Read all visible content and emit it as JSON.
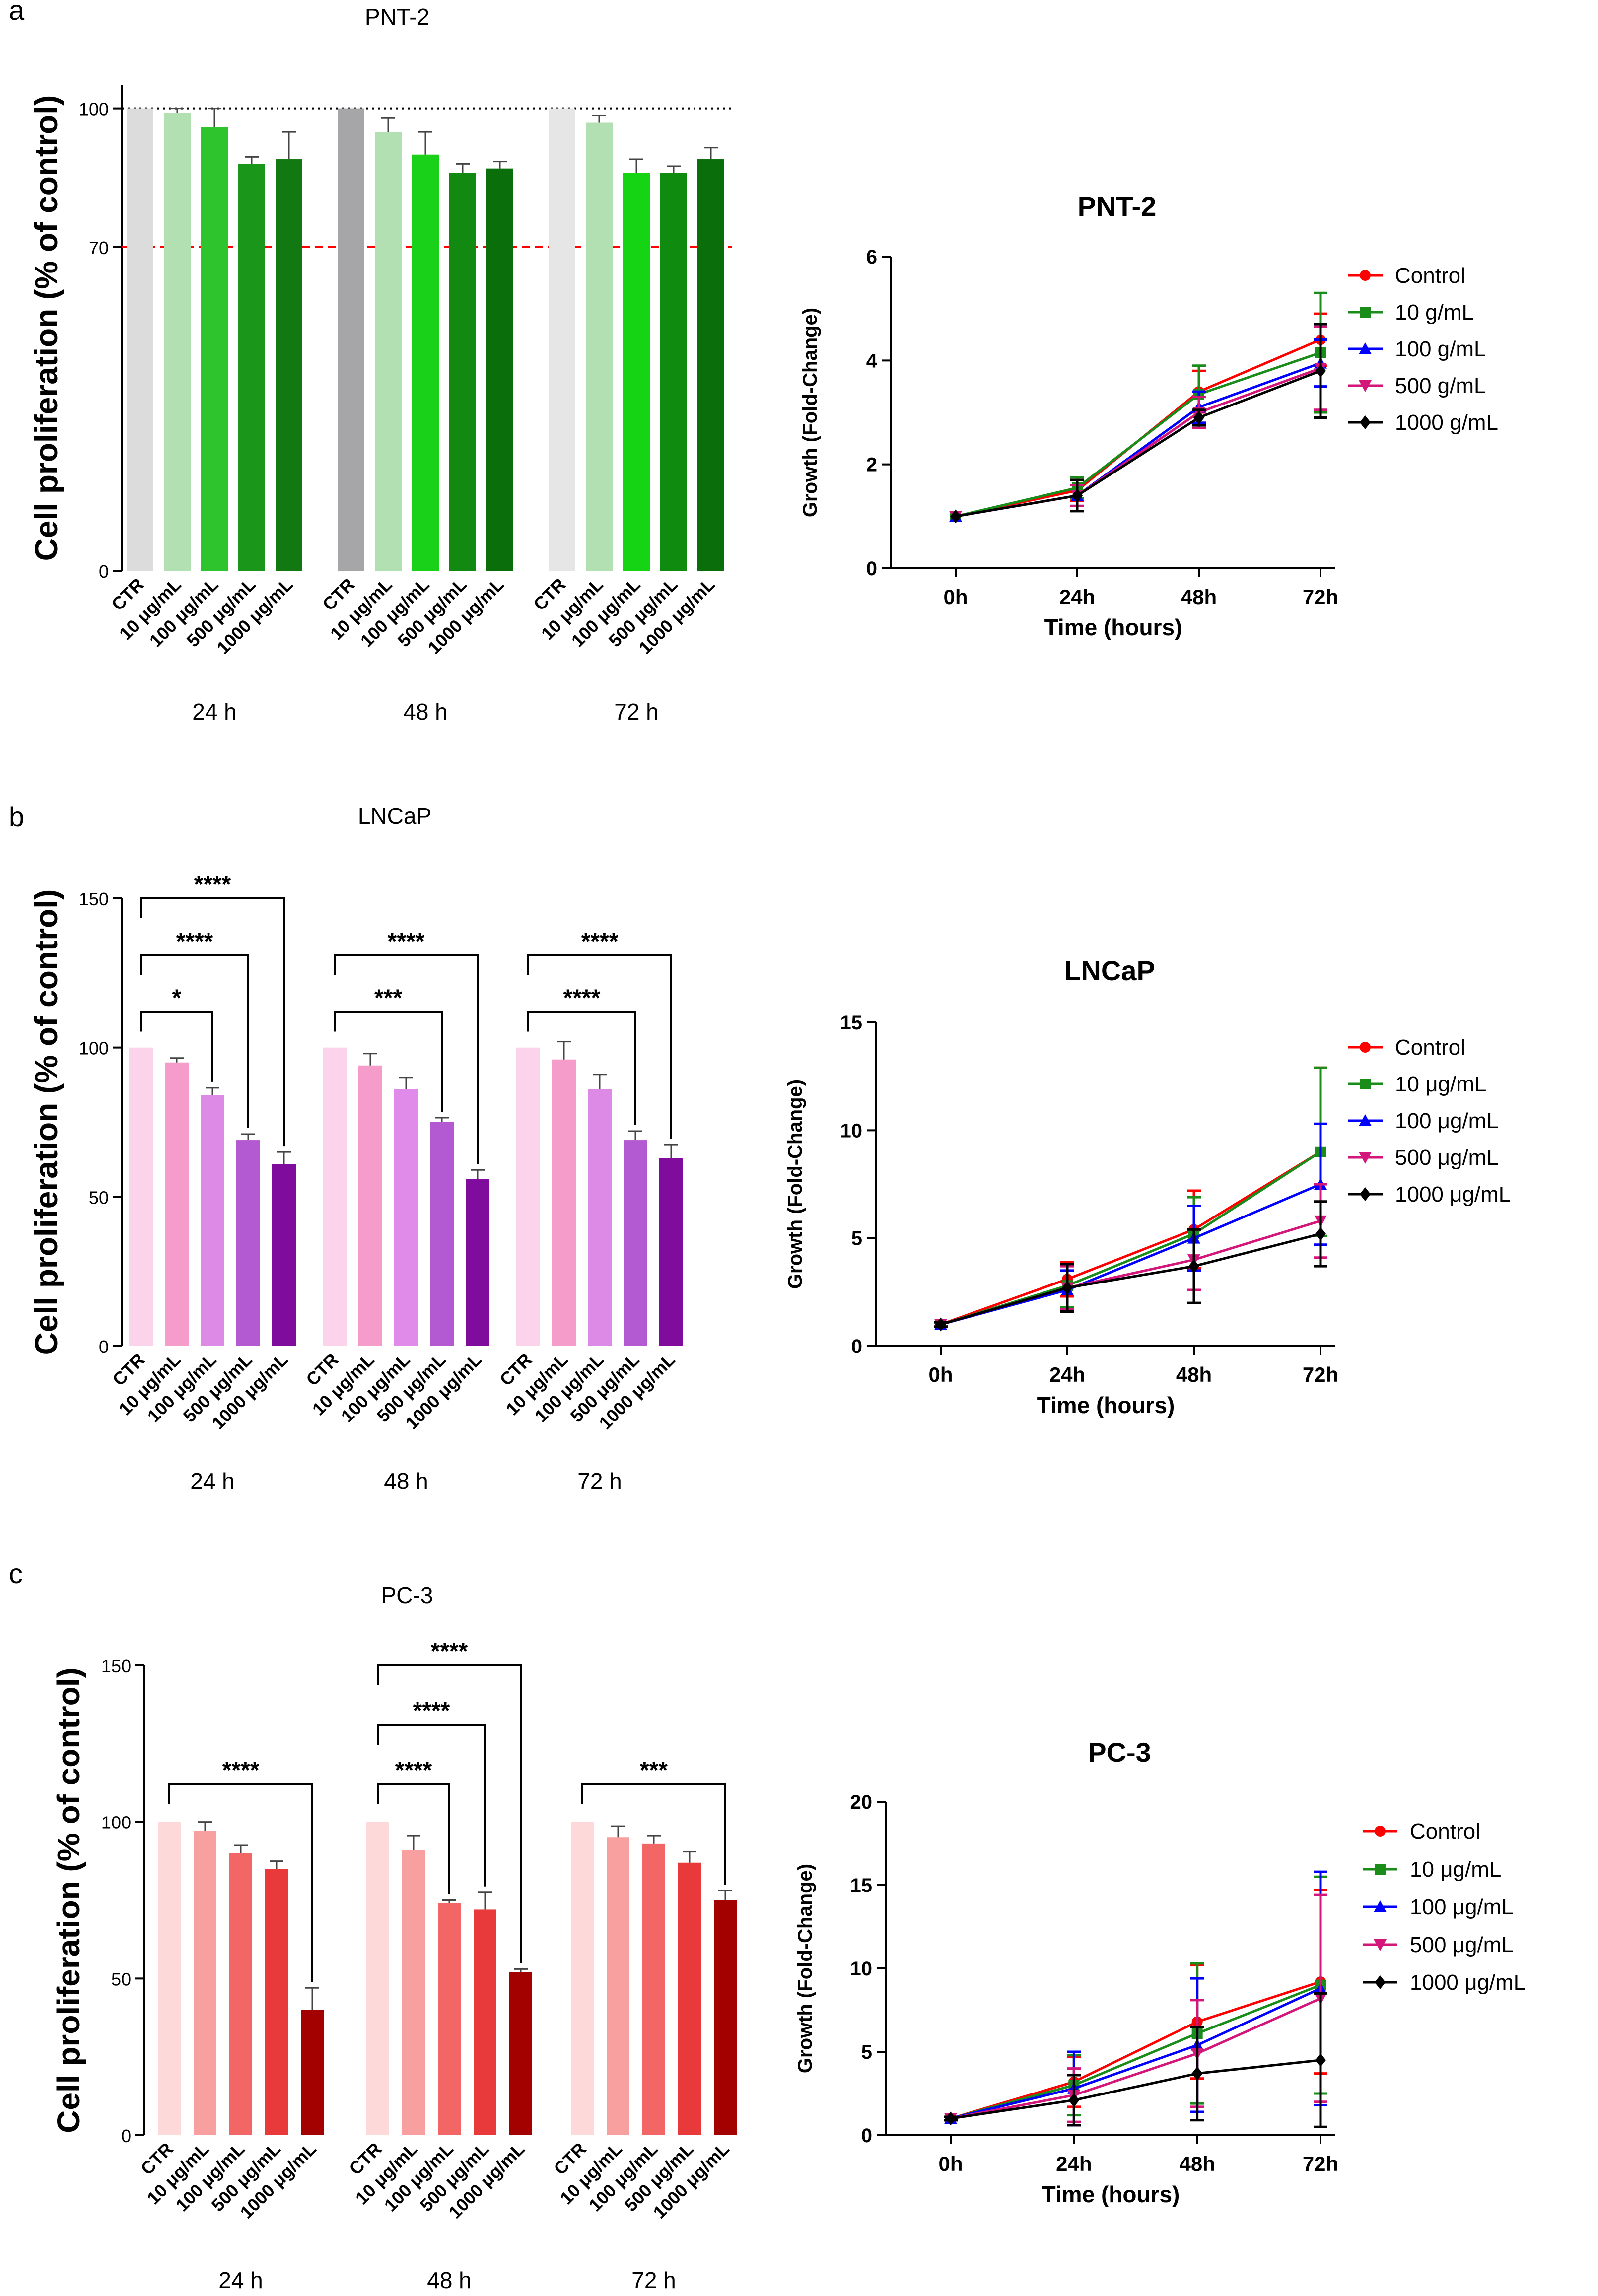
{
  "figure": {
    "panel_labels": [
      "a",
      "b",
      "c"
    ]
  },
  "colors": {
    "axis": "#000000",
    "bracket": "#000000",
    "ref_line_100": "#000000",
    "ref_line_70": "#ff0000"
  },
  "chart_data": [
    {
      "id": "a-bar",
      "type": "bar",
      "title": "PNT-2",
      "ylabel": "Cell proliferation (% of control)",
      "xlabel": "",
      "ylim": [
        0,
        105
      ],
      "yticks": [
        0,
        70,
        100
      ],
      "reference_lines": [
        {
          "y": 100,
          "style": "dotted",
          "color": "#000000"
        },
        {
          "y": 70,
          "style": "dashed",
          "color": "#ff0000"
        }
      ],
      "categories": [
        "CTR",
        "10 μg/mL",
        "100 μg/mL",
        "500 μg/mL",
        "1000 μg/mL"
      ],
      "groups": [
        {
          "name": "24 h",
          "values": [
            100,
            99,
            96,
            88,
            89
          ],
          "errors": [
            0,
            1,
            4,
            1.5,
            6
          ],
          "colors": [
            "#dcdcdc",
            "#b3e0b3",
            "#2ec42e",
            "#1a961a",
            "#127812"
          ]
        },
        {
          "name": "48 h",
          "values": [
            100,
            95,
            90,
            86,
            87
          ],
          "errors": [
            0,
            3,
            5,
            2,
            1.5
          ],
          "colors": [
            "#a6a6a8",
            "#b3e0b3",
            "#19d119",
            "#128a12",
            "#0a6e0a"
          ]
        },
        {
          "name": "72 h",
          "values": [
            100,
            97,
            86,
            86,
            89
          ],
          "errors": [
            0,
            1.5,
            3,
            1.5,
            2.5
          ],
          "colors": [
            "#e6e6e6",
            "#b3e0b3",
            "#14d414",
            "#0f8c0f",
            "#0a6e0a"
          ]
        }
      ],
      "significance": []
    },
    {
      "id": "a-line",
      "type": "line",
      "title": "PNT-2",
      "xlabel": "Time (hours)",
      "ylabel": "Growth (Fold-Change)",
      "x": [
        "0h",
        "24h",
        "48h",
        "72h"
      ],
      "ylim": [
        0,
        6
      ],
      "yticks": [
        0,
        2,
        4,
        6
      ],
      "legend_position": "top-right",
      "series": [
        {
          "name": "Control",
          "marker": "circle",
          "color": "#ff0000",
          "values": [
            1.0,
            1.5,
            3.4,
            4.4
          ],
          "errors": [
            0.05,
            0.2,
            0.4,
            0.5
          ]
        },
        {
          "name": "10 g/mL",
          "marker": "square",
          "color": "#1a8c1a",
          "values": [
            1.0,
            1.55,
            3.35,
            4.15
          ],
          "errors": [
            0.05,
            0.2,
            0.55,
            1.15
          ]
        },
        {
          "name": "100 g/mL",
          "marker": "triangle-up",
          "color": "#0000ff",
          "values": [
            1.0,
            1.4,
            3.1,
            3.95
          ],
          "errors": [
            0.05,
            0.2,
            0.3,
            0.45
          ]
        },
        {
          "name": "500 g/mL",
          "marker": "triangle-down",
          "color": "#d4157a",
          "values": [
            1.0,
            1.4,
            3.0,
            3.85
          ],
          "errors": [
            0.05,
            0.2,
            0.3,
            0.8
          ]
        },
        {
          "name": "1000 g/mL",
          "marker": "diamond",
          "color": "#000000",
          "values": [
            1.0,
            1.4,
            2.9,
            3.8
          ],
          "errors": [
            0.05,
            0.3,
            0.15,
            0.9
          ]
        }
      ]
    },
    {
      "id": "b-bar",
      "type": "bar",
      "title": "LNCaP",
      "ylabel": "Cell proliferation (% of control)",
      "xlabel": "",
      "ylim": [
        0,
        150
      ],
      "yticks": [
        0,
        50,
        100,
        150
      ],
      "reference_lines": [],
      "categories": [
        "CTR",
        "10 μg/mL",
        "100 μg/mL",
        "500 μg/mL",
        "1000 μg/mL"
      ],
      "groups": [
        {
          "name": "24 h",
          "values": [
            100,
            95,
            84,
            69,
            61
          ],
          "errors": [
            0,
            1.5,
            2.5,
            2,
            4
          ],
          "colors": [
            "#fbd3ea",
            "#f59ccb",
            "#dc8ae6",
            "#b359d1",
            "#800c9e"
          ]
        },
        {
          "name": "48 h",
          "values": [
            100,
            94,
            86,
            75,
            56
          ],
          "errors": [
            0,
            4,
            4,
            1.5,
            3
          ],
          "colors": [
            "#fbd3ea",
            "#f59ccb",
            "#e08aea",
            "#b359d1",
            "#800c9e"
          ]
        },
        {
          "name": "72 h",
          "values": [
            100,
            96,
            86,
            69,
            63
          ],
          "errors": [
            0,
            6,
            5,
            3,
            4.5
          ],
          "colors": [
            "#fbd3ea",
            "#f59ccb",
            "#dc8ae6",
            "#b359d1",
            "#800c9e"
          ]
        }
      ],
      "significance": [
        {
          "group": 0,
          "to": 2,
          "label": "*",
          "y": 112
        },
        {
          "group": 0,
          "to": 3,
          "label": "****",
          "y": 131
        },
        {
          "group": 0,
          "to": 4,
          "label": "****",
          "y": 150
        },
        {
          "group": 1,
          "to": 3,
          "label": "***",
          "y": 112
        },
        {
          "group": 1,
          "to": 4,
          "label": "****",
          "y": 131
        },
        {
          "group": 2,
          "to": 3,
          "label": "****",
          "y": 112
        },
        {
          "group": 2,
          "to": 4,
          "label": "****",
          "y": 131
        }
      ]
    },
    {
      "id": "b-line",
      "type": "line",
      "title": "LNCaP",
      "xlabel": "Time (hours)",
      "ylabel": "Growth (Fold-Change)",
      "x": [
        "0h",
        "24h",
        "48h",
        "72h"
      ],
      "ylim": [
        0,
        15
      ],
      "yticks": [
        0,
        5,
        10,
        15
      ],
      "legend_position": "top-right",
      "series": [
        {
          "name": "Control",
          "marker": "circle",
          "color": "#ff0000",
          "values": [
            1.0,
            3.1,
            5.4,
            9.0
          ],
          "errors": [
            0.1,
            0.8,
            1.8,
            3.9
          ]
        },
        {
          "name": "10 μg/mL",
          "marker": "square",
          "color": "#1a8c1a",
          "values": [
            1.0,
            2.8,
            5.2,
            9.0
          ],
          "errors": [
            0.1,
            1.0,
            1.7,
            3.9
          ]
        },
        {
          "name": "100 μg/mL",
          "marker": "triangle-up",
          "color": "#0000ff",
          "values": [
            1.0,
            2.6,
            5.0,
            7.5
          ],
          "errors": [
            0.1,
            0.9,
            1.5,
            2.8
          ]
        },
        {
          "name": "500 μg/mL",
          "marker": "triangle-down",
          "color": "#d4157a",
          "values": [
            1.0,
            2.7,
            4.0,
            5.8
          ],
          "errors": [
            0.1,
            1.0,
            1.4,
            1.7
          ]
        },
        {
          "name": "1000 μg/mL",
          "marker": "diamond",
          "color": "#000000",
          "values": [
            1.0,
            2.7,
            3.7,
            5.2
          ],
          "errors": [
            0.1,
            1.1,
            1.7,
            1.5
          ]
        }
      ]
    },
    {
      "id": "c-bar",
      "type": "bar",
      "title": "PC-3",
      "ylabel": "Cell proliferation (% of control)",
      "xlabel": "",
      "ylim": [
        0,
        150
      ],
      "yticks": [
        0,
        50,
        100,
        150
      ],
      "reference_lines": [],
      "categories": [
        "CTR",
        "10 μg/mL",
        "100 μg/mL",
        "500 μg/mL",
        "1000 μg/mL"
      ],
      "groups": [
        {
          "name": "24 h",
          "values": [
            100,
            97,
            90,
            85,
            40
          ],
          "errors": [
            0,
            3,
            2.5,
            2.5,
            7
          ],
          "colors": [
            "#fdd9d9",
            "#f8a0a0",
            "#f36666",
            "#e83a3a",
            "#a30000"
          ]
        },
        {
          "name": "48 h",
          "values": [
            100,
            91,
            74,
            72,
            52
          ],
          "errors": [
            0,
            4.5,
            1,
            5.5,
            1
          ],
          "colors": [
            "#fdd9d9",
            "#f8a0a0",
            "#f36666",
            "#e83a3a",
            "#a30000"
          ]
        },
        {
          "name": "72 h",
          "values": [
            100,
            95,
            93,
            87,
            75
          ],
          "errors": [
            0,
            3.5,
            2.5,
            3.5,
            3
          ],
          "colors": [
            "#fdd9d9",
            "#f8a0a0",
            "#f36666",
            "#e83a3a",
            "#a30000"
          ]
        }
      ],
      "significance": [
        {
          "group": 0,
          "to": 4,
          "label": "****",
          "y": 112
        },
        {
          "group": 1,
          "to": 2,
          "label": "****",
          "y": 112
        },
        {
          "group": 1,
          "to": 3,
          "label": "****",
          "y": 131
        },
        {
          "group": 1,
          "to": 4,
          "label": "****",
          "y": 150
        },
        {
          "group": 2,
          "to": 4,
          "label": "***",
          "y": 112
        }
      ]
    },
    {
      "id": "c-line",
      "type": "line",
      "title": "PC-3",
      "xlabel": "Time (hours)",
      "ylabel": "Growth (Fold-Change)",
      "x": [
        "0h",
        "24h",
        "48h",
        "72h"
      ],
      "ylim": [
        0,
        20
      ],
      "yticks": [
        0,
        5,
        10,
        15,
        20
      ],
      "legend_position": "top-right",
      "series": [
        {
          "name": "Control",
          "marker": "circle",
          "color": "#ff0000",
          "values": [
            1.0,
            3.2,
            6.8,
            9.2
          ],
          "errors": [
            0.1,
            1.5,
            3.4,
            5.5
          ]
        },
        {
          "name": "10 μg/mL",
          "marker": "square",
          "color": "#1a8c1a",
          "values": [
            1.0,
            3.0,
            6.1,
            9.0
          ],
          "errors": [
            0.1,
            1.8,
            4.2,
            6.5
          ]
        },
        {
          "name": "100 μg/mL",
          "marker": "triangle-up",
          "color": "#0000ff",
          "values": [
            1.0,
            2.8,
            5.4,
            8.8
          ],
          "errors": [
            0.1,
            2.2,
            4.0,
            7.0
          ]
        },
        {
          "name": "500 μg/mL",
          "marker": "triangle-down",
          "color": "#d4157a",
          "values": [
            1.0,
            2.4,
            4.9,
            8.2
          ],
          "errors": [
            0.1,
            1.6,
            3.2,
            6.2
          ]
        },
        {
          "name": "1000 μg/mL",
          "marker": "diamond",
          "color": "#000000",
          "values": [
            1.0,
            2.1,
            3.7,
            4.5
          ],
          "errors": [
            0.1,
            1.5,
            2.8,
            4.0
          ]
        }
      ]
    }
  ]
}
